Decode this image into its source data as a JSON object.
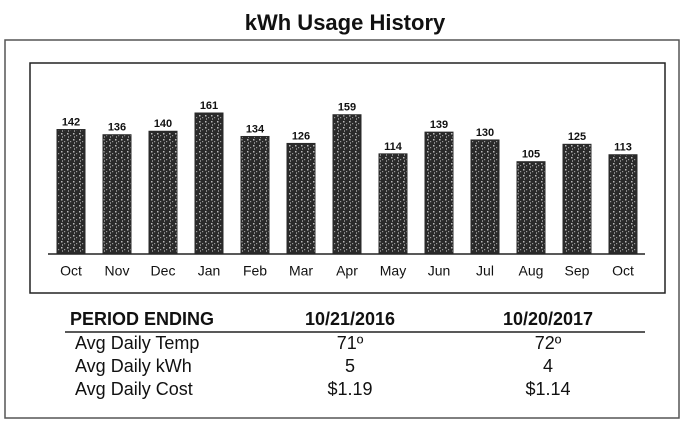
{
  "chart_data": {
    "type": "bar",
    "title": "kWh Usage History",
    "categories": [
      "Oct",
      "Nov",
      "Dec",
      "Jan",
      "Feb",
      "Mar",
      "Apr",
      "May",
      "Jun",
      "Jul",
      "Aug",
      "Sep",
      "Oct"
    ],
    "values": [
      142,
      136,
      140,
      161,
      134,
      126,
      159,
      114,
      139,
      130,
      105,
      125,
      113
    ],
    "color": "#2a2a2a"
  },
  "table": {
    "header": [
      "PERIOD ENDING",
      "10/21/2016",
      "10/20/2017"
    ],
    "rows": [
      [
        "Avg Daily Temp",
        "71º",
        "72º"
      ],
      [
        "Avg Daily kWh",
        "5",
        "4"
      ],
      [
        "Avg Daily Cost",
        "$1.19",
        "$1.14"
      ]
    ]
  }
}
